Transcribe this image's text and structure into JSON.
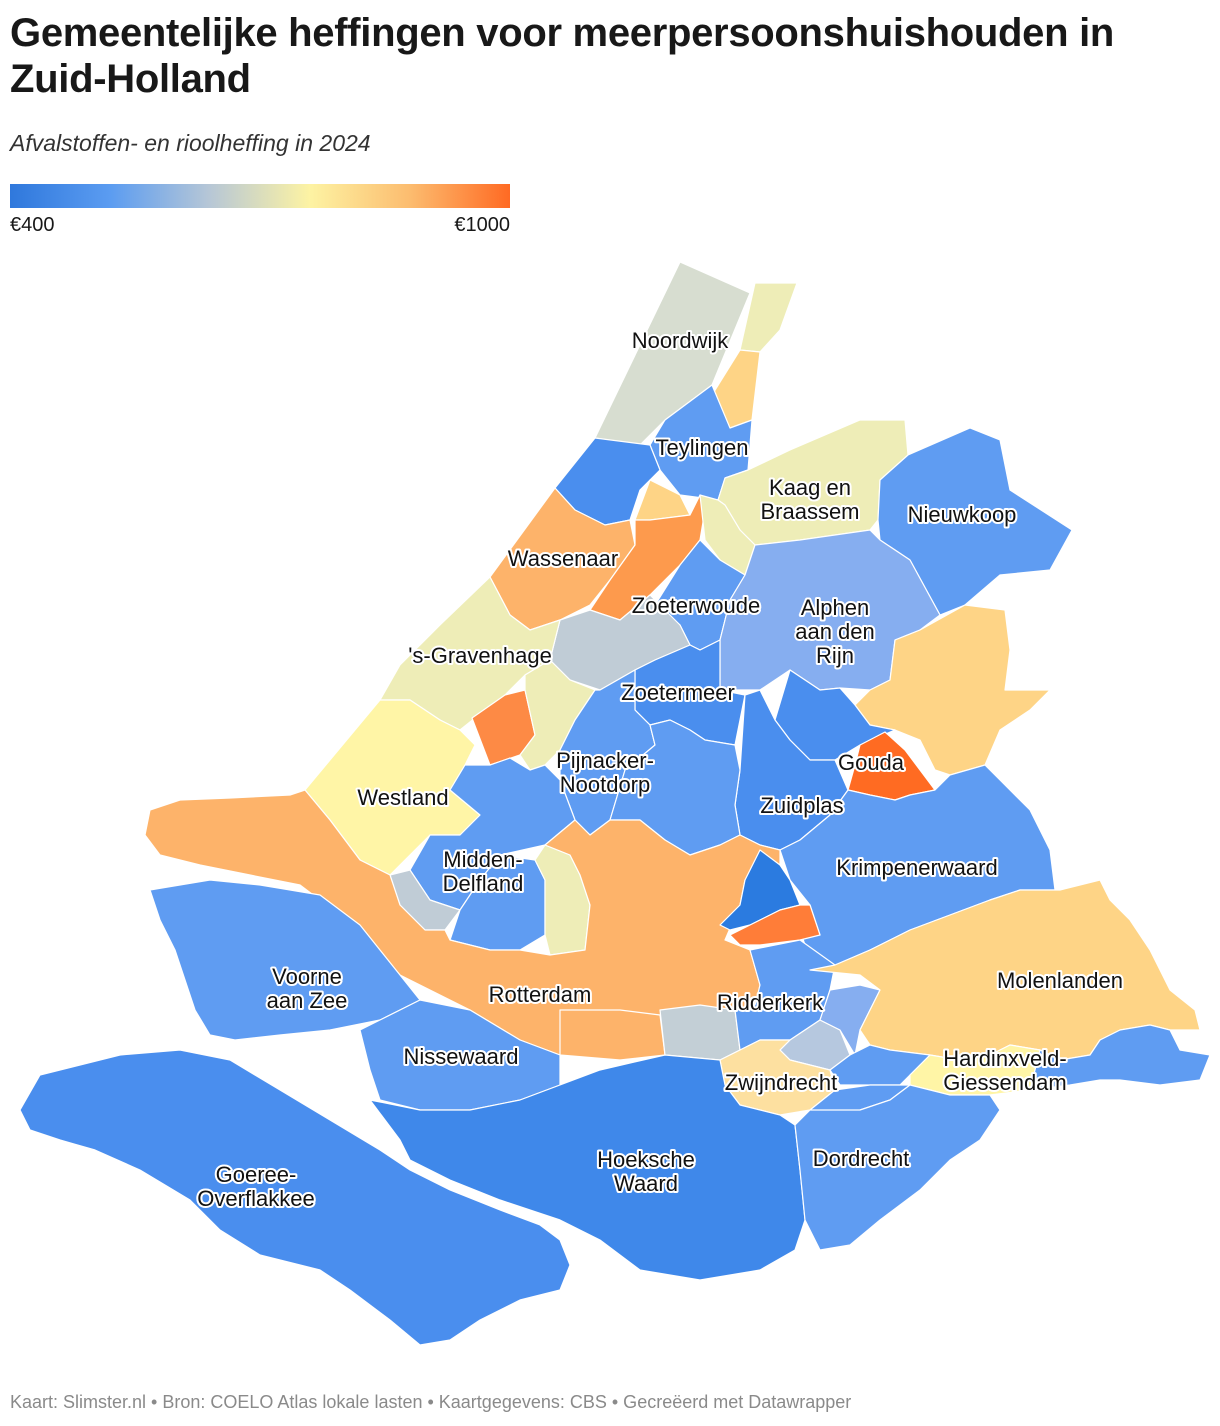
{
  "title": "Gemeentelijke heffingen voor meerpersoonshuishouden in Zuid-Holland",
  "subtitle": "Afvalstoffen- en rioolheffing in 2024",
  "legend": {
    "min_label": "€400",
    "max_label": "€1000",
    "gradient": [
      "#2f78dc",
      "#5b9cf1",
      "#b7c7d6",
      "#fdf3a3",
      "#fcbc6f",
      "#ff6a23"
    ]
  },
  "municipalities": {
    "noordwijk": {
      "label": "Noordwijk",
      "color": "#d7ddd0"
    },
    "teylingen": {
      "label": "Teylingen",
      "color": "#5f9cf2"
    },
    "kaag": {
      "label": "Kaag en Braassem",
      "color": "#eeedb7"
    },
    "nieuwkoop": {
      "label": "Nieuwkoop",
      "color": "#5f9cf2"
    },
    "wassenaar": {
      "label": "Wassenaar",
      "color": "#fdb36a"
    },
    "zoeterwoude": {
      "label": "Zoeterwoude",
      "color": "#5f9cf2"
    },
    "alphen": {
      "label": "Alphen aan den Rijn",
      "color": "#86aef0"
    },
    "gravenhage": {
      "label": "'s-Gravenhage",
      "color": "#eeedb7"
    },
    "zoetermeer": {
      "label": "Zoetermeer",
      "color": "#4a8eee"
    },
    "pijnacker": {
      "label": "Pijnacker-Nootdorp",
      "color": "#5f9cf2"
    },
    "westland": {
      "label": "Westland",
      "color": "#fff5a6"
    },
    "gouda": {
      "label": "Gouda",
      "color": "#ff6b22"
    },
    "zuidplas": {
      "label": "Zuidplas",
      "color": "#4a8eee"
    },
    "midden_delfland": {
      "label": "Midden-Delfland",
      "color": "#5f9cf2"
    },
    "krimpenerwaard": {
      "label": "Krimpenerwaard",
      "color": "#5f9cf2"
    },
    "voorne": {
      "label": "Voorne aan Zee",
      "color": "#5f9cf2"
    },
    "rotterdam": {
      "label": "Rotterdam",
      "color": "#fdb36a"
    },
    "ridderkerk": {
      "label": "Ridderkerk",
      "color": "#5f9cf2"
    },
    "molenlanden": {
      "label": "Molenlanden",
      "color": "#fed486"
    },
    "nissewaard": {
      "label": "Nissewaard",
      "color": "#5f9cf2"
    },
    "hardinxveld": {
      "label": "Hardinxveld-Giessendam",
      "color": "#fff5a6"
    },
    "zwijndrecht": {
      "label": "Zwijndrecht",
      "color": "#fde0a0"
    },
    "hoeksche": {
      "label": "Hoeksche Waard",
      "color": "#3f88ea"
    },
    "dordrecht": {
      "label": "Dordrecht",
      "color": "#5f9cf2"
    },
    "goeree": {
      "label": "Goeree-Overflakkee",
      "color": "#4a8eee"
    }
  },
  "unlabeled_colors": {
    "katwijk": "#4a8eee",
    "hillegom_lisse": "#eeedb7",
    "lisse_south": "#fed486",
    "oegstgeest": "#fed486",
    "leiden": "#fd9a4d",
    "leiderdorp": "#eeedb7",
    "voorschoten": "#c0ccd6",
    "rijswijk": "#fd8a45",
    "delft": "#eeedb7",
    "waddinxveen": "#4a8eee",
    "bodegraven": "#fed486",
    "lansingerland": "#5f9cf2",
    "maassluis": "#c0ccd6",
    "vlaardingen": "#5f9cf2",
    "schiedam": "#eeedb7",
    "capelle": "#2b7be0",
    "krimpen": "#ff7d38",
    "barendrecht": "#c3cfd6",
    "hi_ambacht": "#b6c8df",
    "alblasserdam": "#86aef0",
    "sliedrecht": "#5f9cf2",
    "gorinchem": "#5f9cf2",
    "albrandswaard": "#fdb36a",
    "papendrecht": "#5f9cf2"
  },
  "footer": "Kaart: Slimster.nl • Bron: COELO Atlas lokale lasten • Kaartgegevens: CBS • Gecreëerd met Datawrapper"
}
